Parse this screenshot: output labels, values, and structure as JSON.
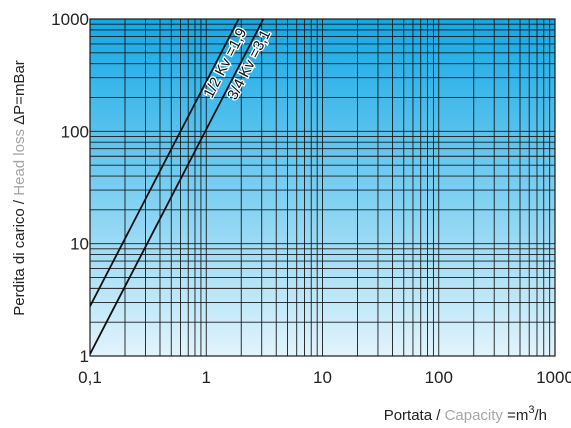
{
  "chart_data": {
    "type": "line",
    "x_scale": "log",
    "y_scale": "log",
    "xlim": [
      0.1,
      1000
    ],
    "ylim": [
      1,
      1000
    ],
    "grid": true,
    "x_ticks": [
      "0,1",
      "1",
      "10",
      "100",
      "1000"
    ],
    "y_ticks": [
      "1",
      "10",
      "100",
      "1000"
    ],
    "ylabel_parts": [
      "Perdita di carico / ",
      "Head loss ",
      "ΔP=mBar"
    ],
    "xlabel_parts": [
      "Portata / ",
      "Capacity",
      " =m",
      "3",
      "/h"
    ],
    "series": [
      {
        "name": "1/2 Kv =1,9",
        "kv": 1.9,
        "x": [
          0.1,
          1.9
        ],
        "y": [
          2.77,
          1000
        ]
      },
      {
        "name": "3/4 Kv =3,1",
        "kv": 3.1,
        "x": [
          0.1,
          3.1
        ],
        "y": [
          1.04,
          1000
        ]
      }
    ],
    "colors": {
      "plot_top": "#11a8e6",
      "plot_bottom": "#e2f4fc",
      "grid": "#1a1a1a",
      "line": "#111111",
      "label_gray": "#a6a6a6",
      "text": "#222222"
    }
  }
}
